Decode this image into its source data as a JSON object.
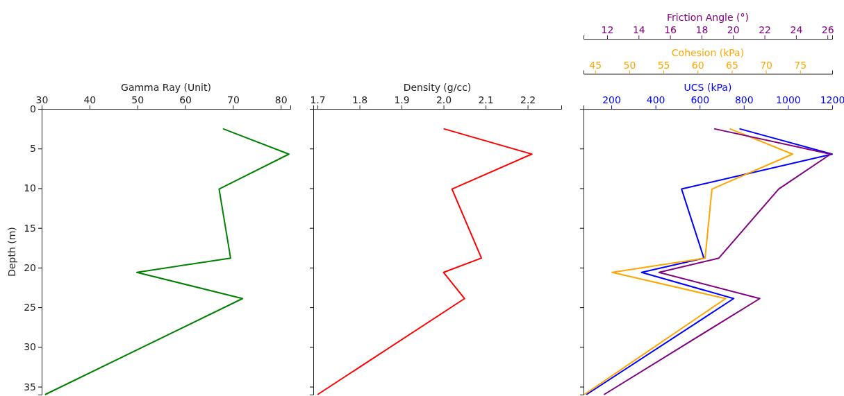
{
  "chart_data": [
    {
      "type": "line",
      "orientation": "horizontal",
      "xlabel": "Gamma Ray (Unit)",
      "ylabel": "Depth (m)",
      "xlim": [
        30,
        82
      ],
      "xticks": [
        30,
        40,
        50,
        60,
        70,
        80
      ],
      "ylim": [
        36,
        0
      ],
      "yticks": [
        0,
        5,
        10,
        15,
        20,
        25,
        30,
        35
      ],
      "x": [
        2.5,
        5.7,
        10.1,
        18.8,
        20.6,
        23.9,
        36
      ],
      "series": [
        {
          "color": "#008000",
          "values": [
            67.9,
            81.7,
            67.1,
            69.5,
            49.9,
            72.0,
            30.7
          ]
        }
      ]
    },
    {
      "type": "line",
      "orientation": "horizontal",
      "xlabel": "Density (g/cc)",
      "xlim": [
        1.69,
        2.28
      ],
      "xticks": [
        1.7,
        1.8,
        1.9,
        {
          "value": 2,
          "label": "2.0"
        },
        2.1,
        2.2
      ],
      "ylim": [
        36,
        0
      ],
      "yticks": [
        0,
        5,
        10,
        15,
        20,
        25,
        30,
        35
      ],
      "tick_labels": "x",
      "x": [
        2.5,
        5.7,
        10.1,
        18.8,
        20.6,
        23.9,
        36
      ],
      "series": [
        {
          "color": "#ff0000",
          "values": [
            2.0,
            2.21,
            2.02,
            2.09,
            2.0,
            2.05,
            1.7
          ]
        }
      ]
    },
    {
      "type": "line",
      "orientation": "horizontal",
      "xlabel": "UCS (kPa)",
      "x2label": "Cohesion (kPa)",
      "xlim": [
        74,
        1200
      ],
      "xticks": [
        200,
        400,
        600,
        800,
        1000,
        1200
      ],
      "x2lim": [
        43.3,
        79.7
      ],
      "x2ticks": [
        45,
        50,
        55,
        60,
        65,
        70,
        75
      ],
      "ylim": [
        36,
        0
      ],
      "yticks": [
        0,
        5,
        10,
        15,
        20,
        25,
        30,
        35
      ],
      "tick_labels": "x",
      "x": [
        2.5,
        5.7,
        10.1,
        18.8,
        20.6,
        23.9,
        36
      ],
      "series": [
        {
          "color": "#0000ff",
          "values": [
            780,
            1200,
            518,
            619,
            337,
            754,
            87
          ]
        },
        {
          "color": "#ffa500",
          "axis": "x2",
          "values": [
            64.7,
            73.9,
            62.1,
            61.1,
            47.5,
            64.1,
            43.4
          ]
        }
      ]
    },
    {
      "type": "line",
      "orientation": "horizontal",
      "xlabel": "Friction Angle (°)",
      "xlim": [
        10.5,
        26.3
      ],
      "xticks": [
        12,
        14,
        16,
        18,
        20,
        22,
        24,
        26
      ],
      "ylim": [
        36,
        0
      ],
      "tick_labels": "x",
      "x": [
        2.5,
        5.7,
        10.1,
        18.8,
        20.6,
        23.9,
        36
      ],
      "series": [
        {
          "color": "#800080",
          "values": [
            18.8,
            26.2,
            22.9,
            19.1,
            15.3,
            21.7,
            11.8
          ]
        }
      ]
    }
  ]
}
